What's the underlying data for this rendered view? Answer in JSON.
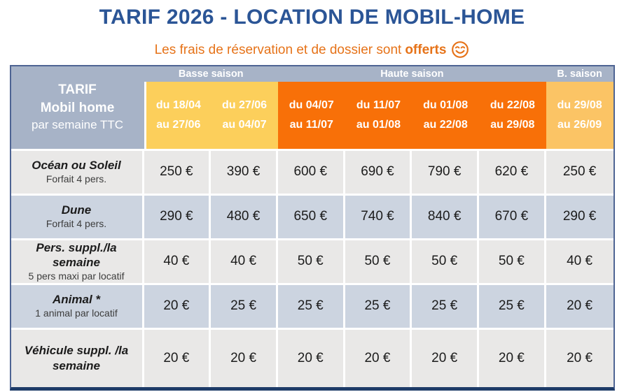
{
  "title": "TARIF 2026 - LOCATION DE MOBIL-HOME",
  "subtitle": {
    "text": "Les frais de réservation et de dossier sont",
    "highlight": "offerts",
    "smiley_icon": "smiling-face"
  },
  "colors": {
    "title_blue": "#2B5596",
    "accent_orange": "#E67319",
    "header_grey_blue": "#A7B3C7",
    "basse_saison_yellow": "#FCCF5B",
    "haute_saison_orange": "#F87008",
    "b_saison_light_orange": "#FBC465",
    "row_grey": "#E9E8E7",
    "row_blue_grey": "#CCD4E0",
    "table_border_navy": "#1F3C68",
    "table_border_side": "#4E6493"
  },
  "table": {
    "corner": {
      "line1": "TARIF",
      "line2": "Mobil home",
      "line3": "par semaine TTC"
    },
    "season_groups": [
      {
        "label": "Basse saison",
        "span": 2,
        "tone": "yellow"
      },
      {
        "label": "Haute saison",
        "span": 4,
        "tone": "orange"
      },
      {
        "label": "B. saison",
        "span": 1,
        "tone": "light-orange"
      }
    ],
    "date_columns": [
      {
        "from": "du 18/04",
        "to": "au 27/06",
        "tone": "yellow"
      },
      {
        "from": "du 27/06",
        "to": "au 04/07",
        "tone": "yellow"
      },
      {
        "from": "du 04/07",
        "to": "au 11/07",
        "tone": "orange"
      },
      {
        "from": "du 11/07",
        "to": "au 01/08",
        "tone": "orange"
      },
      {
        "from": "du 01/08",
        "to": "au 22/08",
        "tone": "orange"
      },
      {
        "from": "du 22/08",
        "to": "au 29/08",
        "tone": "orange"
      },
      {
        "from": "du 29/08",
        "to": "au 26/09",
        "tone": "light-orange"
      }
    ],
    "rows": [
      {
        "name": "Océan ou Soleil",
        "sub": "Forfait 4 pers.",
        "prices": [
          "250 €",
          "390 €",
          "600 €",
          "690 €",
          "790 €",
          "620 €",
          "250 €"
        ]
      },
      {
        "name": "Dune",
        "sub": "Forfait 4 pers.",
        "prices": [
          "290 €",
          "480 €",
          "650 €",
          "740 €",
          "840 €",
          "670 €",
          "290 €"
        ]
      },
      {
        "name": "Pers. suppl./la semaine",
        "sub": "5 pers maxi par locatif",
        "prices": [
          "40 €",
          "40 €",
          "50 €",
          "50 €",
          "50 €",
          "50 €",
          "40 €"
        ]
      },
      {
        "name": "Animal *",
        "sub": "1 animal par locatif",
        "prices": [
          "20 €",
          "25 €",
          "25 €",
          "25 €",
          "25 €",
          "25 €",
          "20 €"
        ]
      },
      {
        "name": "Véhicule suppl. /la semaine",
        "sub": "",
        "prices": [
          "20 €",
          "20 €",
          "20 €",
          "20 €",
          "20 €",
          "20 €",
          "20 €"
        ]
      }
    ]
  }
}
